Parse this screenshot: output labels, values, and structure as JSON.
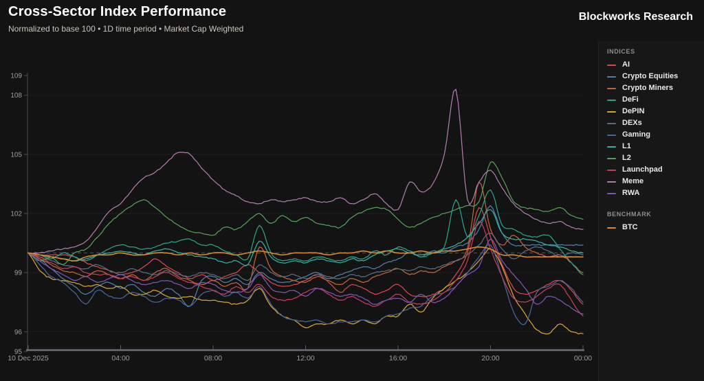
{
  "header": {
    "title": "Cross-Sector Index Performance",
    "subtitle": "Normalized to base 100 • 1D time period • Market Cap Weighted",
    "brand": "Blockworks Research"
  },
  "legend": {
    "indices_label": "INDICES",
    "benchmark_label": "BENCHMARK"
  },
  "chart_data": {
    "type": "line",
    "title": "Cross-Sector Index Performance",
    "subtitle": "Normalized to base 100 • 1D time period • Market Cap Weighted",
    "base_value": 100,
    "grid": "horizontal",
    "legend_position": "right",
    "x_axis": {
      "start_label": "10 Dec 2025",
      "hours_span": 24,
      "ticks": [
        {
          "t": 0,
          "label": "10 Dec 2025"
        },
        {
          "t": 4,
          "label": "04:00"
        },
        {
          "t": 8,
          "label": "08:00"
        },
        {
          "t": 12,
          "label": "12:00"
        },
        {
          "t": 16,
          "label": "16:00"
        },
        {
          "t": 20,
          "label": "20:00"
        },
        {
          "t": 24,
          "label": "00:00"
        }
      ]
    },
    "y_axis": {
      "range": [
        95,
        109
      ],
      "ticks": [
        95,
        96,
        99,
        102,
        105,
        108,
        109
      ],
      "gridline_values": [
        96,
        99,
        102,
        105,
        108
      ],
      "baseline_dashed": 100
    },
    "time_step_hours": 0.5,
    "series": [
      {
        "name": "AI",
        "group": "indices",
        "color": "#d8484f",
        "values": [
          100,
          99.9,
          99.9,
          99.9,
          99.8,
          99.5,
          99.3,
          99.1,
          98.9,
          99.0,
          99.3,
          99.7,
          99.3,
          99.0,
          98.7,
          98.9,
          98.6,
          98.8,
          99.0,
          99.4,
          99.0,
          98.5,
          98.3,
          98.4,
          98.6,
          98.9,
          98.5,
          98.0,
          98.4,
          98.2,
          97.9,
          98.1,
          98.4,
          97.9,
          97.8,
          97.9,
          98.2,
          98.9,
          100.0,
          102.3,
          100.8,
          99.4,
          98.2,
          97.9,
          98.1,
          98.4,
          98.6,
          98.1,
          97.4
        ]
      },
      {
        "name": "Crypto Equities",
        "group": "indices",
        "color": "#4e81ab",
        "values": [
          100,
          99.7,
          99.2,
          98.7,
          98.3,
          97.9,
          98.3,
          98.5,
          98.2,
          98.4,
          98.0,
          97.8,
          98.2,
          97.9,
          97.3,
          98.6,
          98.8,
          98.5,
          98.7,
          98.4,
          99.0,
          98.7,
          98.5,
          98.6,
          98.8,
          99.0,
          98.7,
          98.9,
          99.1,
          99.3,
          99.2,
          99.5,
          99.7,
          100.0,
          99.8,
          100.1,
          100.0,
          100.3,
          100.5,
          101.2,
          102.4,
          101.0,
          100.4,
          100.4,
          100.4,
          100.4,
          100.4,
          100.4,
          100.4
        ]
      },
      {
        "name": "Crypto Miners",
        "group": "indices",
        "color": "#c2653c",
        "values": [
          100,
          99.7,
          99.4,
          99.1,
          99.0,
          98.8,
          99.1,
          98.9,
          98.7,
          98.9,
          98.6,
          99.0,
          99.2,
          98.8,
          98.6,
          98.4,
          98.6,
          98.3,
          98.5,
          98.2,
          100.3,
          99.2,
          98.8,
          98.6,
          98.5,
          98.8,
          98.6,
          98.4,
          98.7,
          98.5,
          98.8,
          99.0,
          99.2,
          98.9,
          99.1,
          99.0,
          99.3,
          99.6,
          100.2,
          103.6,
          101.2,
          100.4,
          100.9,
          100.3,
          100.0,
          99.8,
          99.9,
          99.5,
          99.0
        ]
      },
      {
        "name": "DeFi",
        "group": "indices",
        "color": "#2ca487",
        "values": [
          100,
          99.9,
          99.7,
          100.0,
          99.8,
          99.6,
          99.9,
          100.2,
          100.4,
          100.3,
          100.2,
          100.3,
          100.5,
          100.6,
          100.7,
          100.4,
          100.4,
          100.1,
          99.9,
          99.7,
          101.4,
          100.0,
          99.6,
          99.7,
          99.6,
          99.8,
          99.7,
          99.6,
          99.8,
          99.7,
          100.1,
          99.9,
          100.3,
          100.1,
          99.8,
          100.0,
          100.3,
          102.7,
          100.8,
          101.9,
          103.2,
          101.4,
          101.2,
          100.9,
          100.8,
          100.9,
          100.2,
          99.5,
          98.9
        ]
      },
      {
        "name": "DePIN",
        "group": "indices",
        "color": "#d9a62f",
        "values": [
          100,
          99.1,
          98.7,
          98.6,
          98.5,
          98.3,
          98.4,
          98.2,
          98.3,
          97.9,
          97.9,
          98.1,
          97.8,
          97.7,
          97.8,
          97.6,
          97.6,
          97.5,
          97.4,
          97.6,
          98.2,
          97.3,
          96.8,
          96.6,
          96.2,
          96.4,
          96.4,
          96.6,
          96.4,
          96.6,
          96.4,
          96.8,
          96.8,
          97.4,
          97.0,
          97.7,
          98.2,
          98.6,
          99.0,
          99.6,
          100.2,
          99.3,
          97.8,
          96.9,
          96.1,
          95.9,
          96.4,
          96.0,
          95.9
        ]
      },
      {
        "name": "DEXs",
        "group": "indices",
        "color": "#5d6c82",
        "values": [
          100,
          99.8,
          99.6,
          99.4,
          99.3,
          99.2,
          99.4,
          99.1,
          99.0,
          99.2,
          99.0,
          98.9,
          99.1,
          98.9,
          98.8,
          99.0,
          98.9,
          98.7,
          98.9,
          98.6,
          99.4,
          99.0,
          98.8,
          98.9,
          98.7,
          98.9,
          98.8,
          98.7,
          98.9,
          98.8,
          99.0,
          99.1,
          99.2,
          99.1,
          99.3,
          99.2,
          99.4,
          99.6,
          99.9,
          100.4,
          101.0,
          100.2,
          99.7,
          100.1,
          100.3,
          100.1,
          99.8,
          100.0,
          99.9
        ]
      },
      {
        "name": "Gaming",
        "group": "indices",
        "color": "#49679b",
        "values": [
          100,
          99.4,
          98.8,
          98.5,
          98.0,
          97.4,
          98.1,
          97.8,
          97.7,
          98.0,
          97.8,
          97.5,
          97.7,
          97.6,
          97.3,
          97.9,
          98.1,
          97.8,
          98.0,
          97.7,
          98.3,
          97.4,
          96.8,
          96.6,
          96.5,
          96.6,
          96.4,
          96.5,
          96.5,
          96.6,
          96.5,
          96.8,
          96.9,
          97.2,
          97.3,
          97.8,
          98.0,
          98.3,
          99.0,
          99.8,
          100.4,
          98.8,
          97.0,
          96.4,
          98.0,
          98.3,
          98.6,
          98.2,
          97.5
        ]
      },
      {
        "name": "L1",
        "group": "indices",
        "color": "#3aaf9f",
        "values": [
          100,
          99.9,
          99.8,
          99.7,
          99.6,
          99.7,
          99.9,
          100.0,
          100.1,
          100.0,
          99.9,
          100.1,
          100.2,
          100.0,
          99.9,
          99.8,
          99.7,
          99.5,
          99.6,
          99.4,
          100.6,
          99.8,
          99.5,
          99.6,
          99.5,
          99.7,
          99.6,
          99.5,
          99.7,
          99.6,
          99.9,
          100.1,
          100.2,
          100.0,
          99.9,
          100.0,
          100.2,
          100.4,
          100.8,
          101.5,
          102.2,
          101.0,
          100.7,
          100.7,
          100.6,
          100.4,
          100.3,
          100.1,
          100.0
        ]
      },
      {
        "name": "L2",
        "group": "indices",
        "color": "#55a05a",
        "values": [
          100,
          99.6,
          99.8,
          99.4,
          100.0,
          100.2,
          100.8,
          101.5,
          102.0,
          102.4,
          102.7,
          102.3,
          101.8,
          101.4,
          101.1,
          101.0,
          100.9,
          101.3,
          101.2,
          101.6,
          102.0,
          101.5,
          101.9,
          101.6,
          101.8,
          101.5,
          101.4,
          101.3,
          101.8,
          102.1,
          102.3,
          102.2,
          101.7,
          101.3,
          101.5,
          101.8,
          102.0,
          102.2,
          102.4,
          102.6,
          104.6,
          103.8,
          102.6,
          102.3,
          102.2,
          102.1,
          102.3,
          101.9,
          101.7
        ]
      },
      {
        "name": "Launchpad",
        "group": "indices",
        "color": "#c43f5c",
        "values": [
          100,
          99.8,
          99.5,
          99.2,
          99.3,
          99.0,
          98.9,
          98.9,
          98.7,
          98.8,
          98.6,
          98.8,
          99.0,
          98.7,
          98.5,
          98.3,
          98.1,
          97.9,
          98.3,
          98.0,
          98.4,
          97.8,
          97.6,
          97.7,
          98.0,
          98.2,
          97.9,
          97.6,
          97.8,
          97.5,
          97.3,
          97.6,
          97.9,
          97.5,
          97.4,
          97.6,
          98.0,
          98.6,
          99.6,
          101.6,
          100.2,
          98.8,
          97.7,
          97.5,
          97.8,
          98.2,
          98.4,
          97.6,
          96.8
        ]
      },
      {
        "name": "Meme",
        "group": "indices",
        "color": "#b07cab",
        "values": [
          100,
          100.0,
          100.1,
          100.2,
          100.3,
          100.6,
          101.3,
          102.1,
          102.5,
          103.2,
          103.8,
          104.1,
          104.6,
          105.1,
          105.0,
          104.3,
          103.7,
          103.2,
          102.9,
          102.6,
          102.5,
          102.7,
          102.6,
          102.7,
          102.8,
          102.6,
          102.6,
          102.8,
          102.5,
          102.7,
          103.0,
          102.5,
          102.2,
          103.6,
          103.1,
          103.5,
          105.0,
          108.3,
          102.7,
          103.6,
          104.2,
          103.3,
          102.5,
          102.0,
          101.7,
          101.5,
          101.6,
          101.3,
          101.2
        ]
      },
      {
        "name": "RWA",
        "group": "indices",
        "color": "#7e57b5",
        "values": [
          100,
          99.6,
          99.2,
          98.9,
          98.6,
          98.8,
          98.5,
          98.7,
          98.9,
          98.6,
          98.4,
          98.5,
          98.6,
          98.4,
          98.2,
          98.5,
          98.4,
          98.1,
          98.0,
          98.2,
          98.9,
          98.2,
          98.0,
          98.1,
          97.8,
          98.2,
          98.0,
          97.8,
          97.9,
          97.7,
          97.4,
          97.6,
          97.7,
          97.5,
          97.9,
          97.5,
          97.7,
          98.3,
          98.9,
          99.3,
          100.7,
          99.6,
          98.9,
          98.2,
          97.4,
          97.8,
          97.6,
          97.2,
          96.9
        ]
      },
      {
        "name": "BTC",
        "group": "benchmark",
        "color": "#d98a31",
        "values": [
          100,
          99.9,
          99.8,
          99.7,
          99.6,
          99.8,
          99.9,
          99.9,
          100.0,
          99.9,
          99.9,
          100.0,
          100.0,
          99.9,
          100.0,
          99.9,
          100.0,
          100.0,
          99.9,
          100.0,
          100.1,
          100.0,
          99.9,
          100.0,
          100.0,
          100.0,
          99.9,
          100.0,
          100.0,
          100.1,
          100.0,
          100.1,
          100.0,
          100.0,
          100.1,
          100.0,
          100.1,
          100.1,
          100.2,
          100.3,
          100.2,
          99.9,
          99.9,
          99.8,
          99.8,
          99.8,
          99.8,
          99.8,
          99.8
        ]
      }
    ]
  }
}
